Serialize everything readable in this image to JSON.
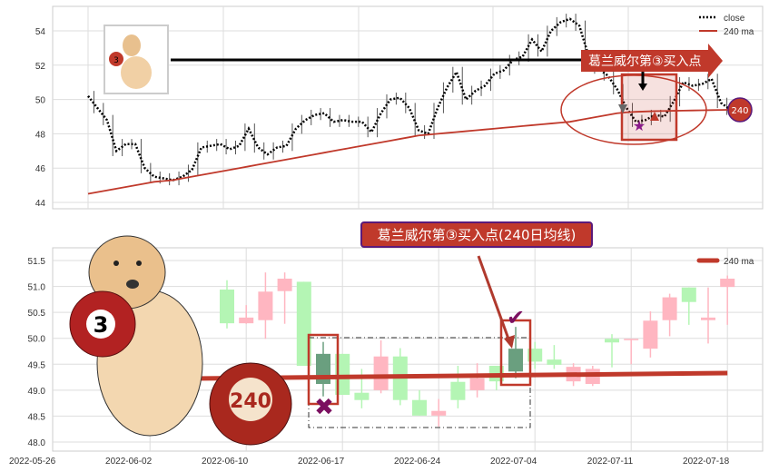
{
  "chart_data": [
    {
      "type": "line",
      "legend": [
        "close",
        "240 ma"
      ],
      "legend_placement": "top-right",
      "grid": true,
      "ylim": [
        43.7,
        55.2
      ],
      "y_ticks": [
        44,
        46,
        48,
        50,
        52,
        54
      ],
      "series": [
        {
          "name": "close",
          "style": "dotted",
          "color": "#000000",
          "values": [
            50.2,
            49.5,
            48.8,
            47.0,
            47.4,
            47.4,
            46.0,
            45.5,
            45.4,
            45.3,
            45.5,
            45.9,
            47.2,
            47.3,
            47.4,
            47.1,
            47.3,
            48.3,
            47.2,
            46.8,
            47.2,
            47.3,
            48.3,
            48.8,
            49.1,
            49.2,
            48.7,
            48.8,
            48.7,
            48.7,
            48.1,
            49.2,
            50.0,
            50.1,
            49.5,
            48.2,
            48.0,
            49.5,
            50.7,
            51.6,
            50.0,
            50.5,
            50.8,
            51.5,
            51.7,
            52.3,
            52.5,
            53.5,
            52.8,
            54.0,
            54.5,
            54.7,
            54.3,
            52.5,
            51.8,
            51.4,
            50.6,
            49.5,
            48.7,
            48.8,
            49.1,
            49.0,
            49.9,
            51.0,
            50.8,
            50.9,
            51.2,
            49.8,
            49.4,
            49.7
          ]
        },
        {
          "name": "240 ma",
          "style": "solid",
          "color": "#c0392b",
          "values": [
            44.5,
            44.6,
            44.7,
            44.8,
            44.9,
            45.0,
            45.1,
            45.2,
            45.25,
            45.3,
            45.4,
            45.5,
            45.6,
            45.7,
            45.8,
            45.9,
            46.0,
            46.1,
            46.2,
            46.3,
            46.4,
            46.5,
            46.6,
            46.7,
            46.8,
            46.9,
            47.0,
            47.1,
            47.2,
            47.3,
            47.4,
            47.5,
            47.6,
            47.7,
            47.8,
            47.9,
            47.95,
            48.0,
            48.05,
            48.1,
            48.15,
            48.2,
            48.25,
            48.3,
            48.35,
            48.4,
            48.45,
            48.5,
            48.55,
            48.6,
            48.65,
            48.7,
            48.8,
            48.9,
            49.0,
            49.1,
            49.2,
            49.25,
            49.28,
            49.3,
            49.32,
            49.33,
            49.34,
            49.35,
            49.36,
            49.37,
            49.38,
            49.39,
            49.4,
            49.4
          ]
        }
      ],
      "annotations": {
        "banner": "葛兰威尔第③买入点",
        "badge": "240",
        "inset_ball": "3"
      }
    },
    {
      "type": "candlestick",
      "legend": [
        "240 ma"
      ],
      "legend_placement": "top-right",
      "grid": true,
      "ylim": [
        47.85,
        51.75
      ],
      "y_ticks": [
        "48.0",
        "48.5",
        "49.0",
        "49.5",
        "50.0",
        "50.5",
        "51.0",
        "51.5"
      ],
      "x_ticks": [
        {
          "label": "2022-05-26",
          "candle_index": -9
        },
        {
          "label": "2022-06-02",
          "candle_index": -4
        },
        {
          "label": "2022-06-10",
          "candle_index": 1
        },
        {
          "label": "2022-06-17",
          "candle_index": 6
        },
        {
          "label": "2022-06-24",
          "candle_index": 11
        },
        {
          "label": "2022-07-04",
          "candle_index": 16
        },
        {
          "label": "2022-07-11",
          "candle_index": 21
        },
        {
          "label": "2022-07-18",
          "candle_index": 26
        }
      ],
      "candles": [
        {
          "o": 50.94,
          "c": 50.29,
          "h": 51.12,
          "l": 50.19
        },
        {
          "o": 50.29,
          "c": 50.4,
          "h": 50.64,
          "l": 50.28
        },
        {
          "o": 50.35,
          "c": 50.9,
          "h": 51.27,
          "l": 49.99
        },
        {
          "o": 50.91,
          "c": 51.15,
          "h": 51.27,
          "l": 50.28
        },
        {
          "o": 51.09,
          "c": 49.47,
          "h": 51.09,
          "l": 49.47
        },
        {
          "o": 49.7,
          "c": 49.12,
          "h": 49.93,
          "l": 48.88,
          "highlight": true
        },
        {
          "o": 49.7,
          "c": 48.91,
          "h": 49.7,
          "l": 48.91
        },
        {
          "o": 48.95,
          "c": 48.81,
          "h": 49.41,
          "l": 48.65
        },
        {
          "o": 49.0,
          "c": 49.65,
          "h": 49.96,
          "l": 48.94
        },
        {
          "o": 49.65,
          "c": 48.81,
          "h": 49.81,
          "l": 48.71
        },
        {
          "o": 48.81,
          "c": 48.51,
          "h": 49.0,
          "l": 48.51
        },
        {
          "o": 48.51,
          "c": 48.6,
          "h": 48.83,
          "l": 48.3
        },
        {
          "o": 49.16,
          "c": 48.81,
          "h": 49.47,
          "l": 48.65
        },
        {
          "o": 49.0,
          "c": 49.23,
          "h": 49.52,
          "l": 48.86
        },
        {
          "o": 49.47,
          "c": 49.17,
          "h": 49.47,
          "l": 49.0
        },
        {
          "o": 49.8,
          "c": 49.36,
          "h": 50.22,
          "l": 49.23,
          "highlight": true
        },
        {
          "o": 49.8,
          "c": 49.55,
          "h": 49.93,
          "l": 49.41
        },
        {
          "o": 49.59,
          "c": 49.49,
          "h": 49.87,
          "l": 49.41
        },
        {
          "o": 49.17,
          "c": 49.45,
          "h": 49.52,
          "l": 49.08
        },
        {
          "o": 49.12,
          "c": 49.41,
          "h": 49.47,
          "l": 49.08
        },
        {
          "o": 49.99,
          "c": 49.92,
          "h": 50.08,
          "l": 49.44
        },
        {
          "o": 49.98,
          "c": 49.99,
          "h": 49.99,
          "l": 49.5
        },
        {
          "o": 49.8,
          "c": 50.34,
          "h": 50.52,
          "l": 49.63
        },
        {
          "o": 50.35,
          "c": 50.79,
          "h": 50.86,
          "l": 50.04
        },
        {
          "o": 50.98,
          "c": 50.7,
          "h": 50.98,
          "l": 50.26
        },
        {
          "o": 50.35,
          "c": 50.4,
          "h": 50.98,
          "l": 49.9
        },
        {
          "o": 50.99,
          "c": 51.15,
          "h": 51.21,
          "l": 50.26
        }
      ],
      "ma": {
        "name": "240 ma",
        "start_index": -3,
        "start": 49.22,
        "end": 49.33,
        "color": "#c0392b"
      },
      "annotations": {
        "label": "葛兰威尔第③买入点(240日均线)",
        "ball_3": "3",
        "ball_240": "240"
      }
    }
  ],
  "colors": {
    "up": "#ffb6c1",
    "down": "#b4f5b4",
    "highlight": "#6a9f7f",
    "accent": "#c0392b",
    "purple": "#7b1060"
  }
}
